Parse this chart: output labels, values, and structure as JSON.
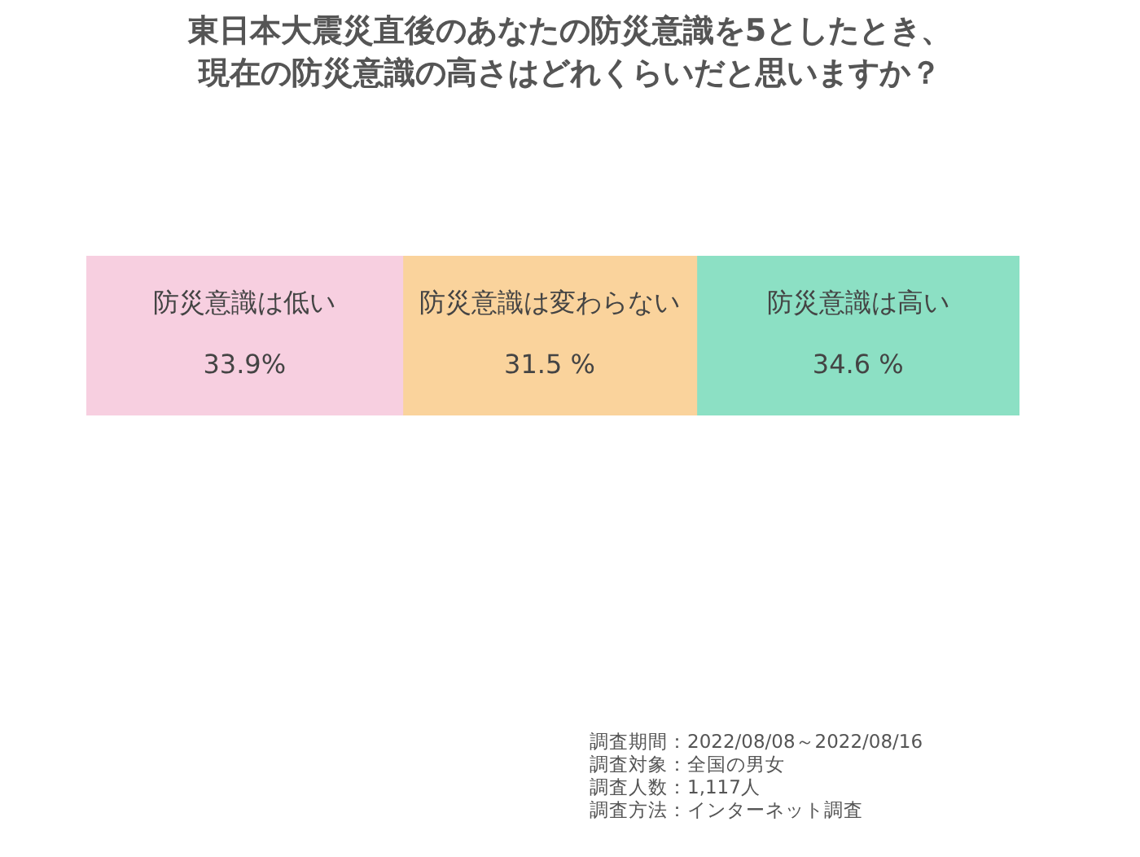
{
  "chart_data": {
    "type": "bar",
    "orientation": "horizontal",
    "stacked": true,
    "title": "東日本大震災直後のあなたの防災意識を5としたとき、現在の防災意識の高さはどれくらいだと思いますか？",
    "categories": [
      null
    ],
    "series": [
      {
        "name": "防災意識は低い",
        "color": "#f7cfe0",
        "values": [
          33.9
        ],
        "value_labels": [
          "33.9%"
        ]
      },
      {
        "name": "防災意識は変わらない",
        "color": "#fad39c",
        "values": [
          31.5
        ],
        "value_labels": [
          "31.5 %"
        ]
      },
      {
        "name": "防災意識は高い",
        "color": "#8ce0c4",
        "values": [
          34.6
        ],
        "value_labels": [
          "34.6 %"
        ]
      }
    ],
    "xlim": [
      0,
      100
    ],
    "legend": false,
    "annotations": [
      "調査期間：2022/08/08～2022/08/16",
      "調査対象：全国の男女",
      "調査人数：1,117人",
      "調査方法：インターネット調査"
    ]
  }
}
